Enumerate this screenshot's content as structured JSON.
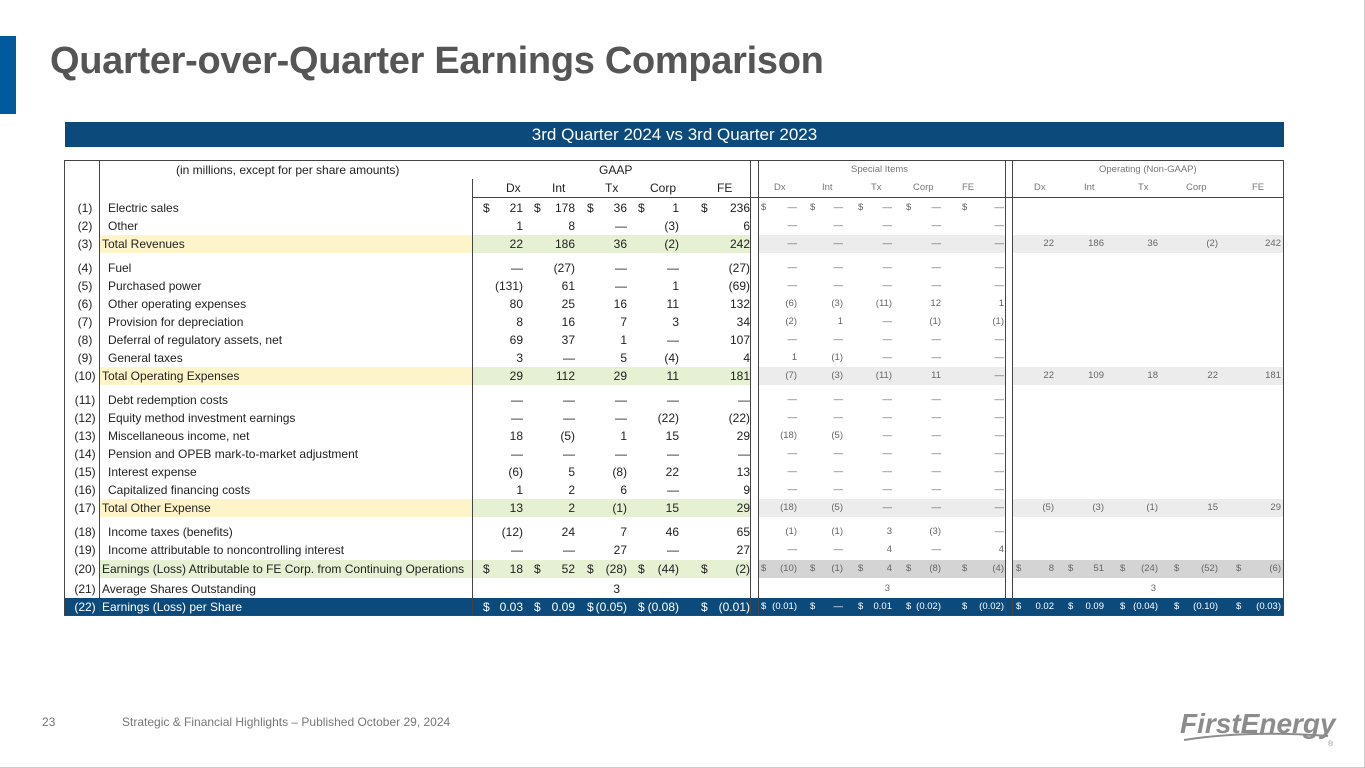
{
  "title": "Quarter-over-Quarter Earnings Comparison",
  "banner": "3rd Quarter 2024 vs 3rd Quarter 2023",
  "footer": {
    "page": "23",
    "text": "Strategic & Financial Highlights – Published October 29, 2024"
  },
  "logo": {
    "text": "FirstEnergy",
    "mark": "®"
  },
  "colors": {
    "accent": "#005a9c",
    "banner": "#0c4a7c",
    "total_yellow": "#fdf5c9",
    "total_green": "#e6f0d2",
    "earn_gray": "#d4d4d4",
    "eps_navy": "#0c4a7c"
  },
  "table": {
    "caption": "(in millions, except for per share amounts)",
    "groups": {
      "gaap": "GAAP",
      "special": "Special Items",
      "operating": "Operating (Non-GAAP)"
    },
    "columns": [
      "Dx",
      "Int",
      "Tx",
      "Corp",
      "FE"
    ],
    "rows": [
      {
        "n": "(1)",
        "label": "Electric sales",
        "g": [
          "21",
          "178",
          "36",
          "1",
          "236"
        ],
        "s": [
          "—",
          "—",
          "—",
          "—",
          "—"
        ],
        "o": [
          "",
          "",
          "",
          "",
          ""
        ]
      },
      {
        "n": "(2)",
        "label": "Other",
        "g": [
          "1",
          "8",
          "—",
          "(3)",
          "6"
        ],
        "s": [
          "—",
          "—",
          "—",
          "—",
          "—"
        ],
        "o": [
          "",
          "",
          "",
          "",
          ""
        ]
      },
      {
        "n": "(3)",
        "label": "Total Revenues",
        "g": [
          "22",
          "186",
          "36",
          "(2)",
          "242"
        ],
        "s": [
          "—",
          "—",
          "—",
          "—",
          "—"
        ],
        "o": [
          "22",
          "186",
          "36",
          "(2)",
          "242"
        ]
      },
      {
        "n": "(4)",
        "label": "Fuel",
        "g": [
          "—",
          "(27)",
          "—",
          "—",
          "(27)"
        ],
        "s": [
          "—",
          "—",
          "—",
          "—",
          "—"
        ],
        "o": [
          "",
          "",
          "",
          "",
          ""
        ]
      },
      {
        "n": "(5)",
        "label": "Purchased power",
        "g": [
          "(131)",
          "61",
          "—",
          "1",
          "(69)"
        ],
        "s": [
          "—",
          "—",
          "—",
          "—",
          "—"
        ],
        "o": [
          "",
          "",
          "",
          "",
          ""
        ]
      },
      {
        "n": "(6)",
        "label": "Other operating expenses",
        "g": [
          "80",
          "25",
          "16",
          "11",
          "132"
        ],
        "s": [
          "(6)",
          "(3)",
          "(11)",
          "12",
          "1"
        ],
        "o": [
          "",
          "",
          "",
          "",
          ""
        ]
      },
      {
        "n": "(7)",
        "label": "Provision for depreciation",
        "g": [
          "8",
          "16",
          "7",
          "3",
          "34"
        ],
        "s": [
          "(2)",
          "1",
          "—",
          "(1)",
          "(1)"
        ],
        "o": [
          "",
          "",
          "",
          "",
          ""
        ]
      },
      {
        "n": "(8)",
        "label": "Deferral of regulatory assets, net",
        "g": [
          "69",
          "37",
          "1",
          "—",
          "107"
        ],
        "s": [
          "—",
          "—",
          "—",
          "—",
          "—"
        ],
        "o": [
          "",
          "",
          "",
          "",
          ""
        ]
      },
      {
        "n": "(9)",
        "label": "General taxes",
        "g": [
          "3",
          "—",
          "5",
          "(4)",
          "4"
        ],
        "s": [
          "1",
          "(1)",
          "—",
          "—",
          "—"
        ],
        "o": [
          "",
          "",
          "",
          "",
          ""
        ]
      },
      {
        "n": "(10)",
        "label": "Total Operating Expenses",
        "g": [
          "29",
          "112",
          "29",
          "11",
          "181"
        ],
        "s": [
          "(7)",
          "(3)",
          "(11)",
          "11",
          "—"
        ],
        "o": [
          "22",
          "109",
          "18",
          "22",
          "181"
        ]
      },
      {
        "n": "(11)",
        "label": "Debt redemption costs",
        "g": [
          "—",
          "—",
          "—",
          "—",
          "—"
        ],
        "s": [
          "—",
          "—",
          "—",
          "—",
          "—"
        ],
        "o": [
          "",
          "",
          "",
          "",
          ""
        ]
      },
      {
        "n": "(12)",
        "label": "Equity method investment earnings",
        "g": [
          "—",
          "—",
          "—",
          "(22)",
          "(22)"
        ],
        "s": [
          "—",
          "—",
          "—",
          "—",
          "—"
        ],
        "o": [
          "",
          "",
          "",
          "",
          ""
        ]
      },
      {
        "n": "(13)",
        "label": "Miscellaneous income, net",
        "g": [
          "18",
          "(5)",
          "1",
          "15",
          "29"
        ],
        "s": [
          "(18)",
          "(5)",
          "—",
          "—",
          "—"
        ],
        "o": [
          "",
          "",
          "",
          "",
          ""
        ]
      },
      {
        "n": "(14)",
        "label": "Pension and OPEB mark-to-market adjustment",
        "g": [
          "—",
          "—",
          "—",
          "—",
          "—"
        ],
        "s": [
          "—",
          "—",
          "—",
          "—",
          "—"
        ],
        "o": [
          "",
          "",
          "",
          "",
          ""
        ]
      },
      {
        "n": "(15)",
        "label": "Interest expense",
        "g": [
          "(6)",
          "5",
          "(8)",
          "22",
          "13"
        ],
        "s": [
          "—",
          "—",
          "—",
          "—",
          "—"
        ],
        "o": [
          "",
          "",
          "",
          "",
          ""
        ]
      },
      {
        "n": "(16)",
        "label": "Capitalized financing costs",
        "g": [
          "1",
          "2",
          "6",
          "—",
          "9"
        ],
        "s": [
          "—",
          "—",
          "—",
          "—",
          "—"
        ],
        "o": [
          "",
          "",
          "",
          "",
          ""
        ]
      },
      {
        "n": "(17)",
        "label": "Total Other Expense",
        "g": [
          "13",
          "2",
          "(1)",
          "15",
          "29"
        ],
        "s": [
          "(18)",
          "(5)",
          "—",
          "—",
          "—"
        ],
        "o": [
          "(5)",
          "(3)",
          "(1)",
          "15",
          "29"
        ]
      },
      {
        "n": "(18)",
        "label": "Income taxes (benefits)",
        "g": [
          "(12)",
          "24",
          "7",
          "46",
          "65"
        ],
        "s": [
          "(1)",
          "(1)",
          "3",
          "(3)",
          "—"
        ],
        "o": [
          "",
          "",
          "",
          "",
          ""
        ]
      },
      {
        "n": "(19)",
        "label": "Income attributable to noncontrolling interest",
        "g": [
          "—",
          "—",
          "27",
          "—",
          "27"
        ],
        "s": [
          "—",
          "—",
          "4",
          "—",
          "4"
        ],
        "o": [
          "",
          "",
          "",
          "",
          ""
        ]
      },
      {
        "n": "(20)",
        "label": "Earnings (Loss) Attributable to FE Corp. from Continuing Operations",
        "g": [
          "18",
          "52",
          "(28)",
          "(44)",
          "(2)"
        ],
        "s": [
          "(10)",
          "(1)",
          "4",
          "(8)",
          "(4)"
        ],
        "o": [
          "8",
          "51",
          "(24)",
          "(52)",
          "(6)"
        ]
      },
      {
        "n": "(21)",
        "label": "Average Shares Outstanding",
        "g": [
          "3"
        ],
        "s": [
          "3"
        ],
        "o": [
          "3"
        ]
      },
      {
        "n": "(22)",
        "label": "Earnings (Loss) per Share",
        "g": [
          "0.03",
          "0.09",
          "(0.05)",
          "(0.08)",
          "(0.01)"
        ],
        "s": [
          "(0.01)",
          "—",
          "0.01",
          "(0.02)",
          "(0.02)"
        ],
        "o": [
          "0.02",
          "0.09",
          "(0.04)",
          "(0.10)",
          "(0.03)"
        ]
      }
    ]
  }
}
